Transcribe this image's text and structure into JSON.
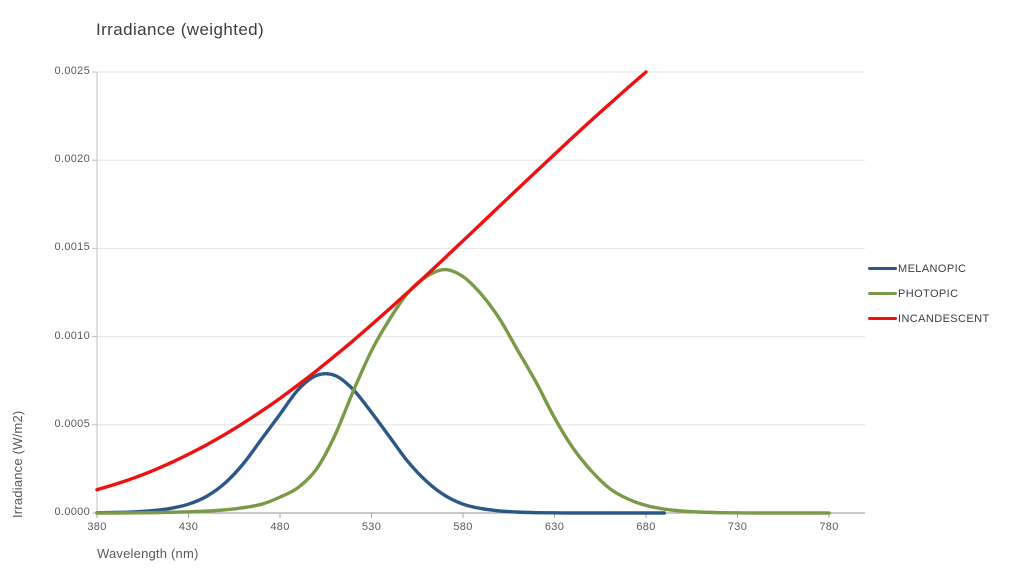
{
  "title": "Irradiance (weighted)",
  "chart_data": {
    "type": "line",
    "title": "Irradiance (weighted)",
    "xlabel": "Wavelength (nm)",
    "ylabel": "Irradiance (W/m2)",
    "xlim": [
      380,
      800
    ],
    "ylim": [
      0,
      0.0025
    ],
    "x_ticks": [
      380,
      430,
      480,
      530,
      580,
      630,
      680,
      730,
      780
    ],
    "y_ticks": [
      {
        "value": 0.0,
        "label": "0.0000"
      },
      {
        "value": 0.0005,
        "label": "0.0005"
      },
      {
        "value": 0.001,
        "label": "0.0010"
      },
      {
        "value": 0.0015,
        "label": "0.0015"
      },
      {
        "value": 0.002,
        "label": "0.0020"
      },
      {
        "value": 0.0025,
        "label": "0.0025"
      }
    ],
    "grid": "horizontal",
    "legend_position": "right",
    "colors": {
      "grid": "#e4e4e4",
      "axis": "#a6a6a6",
      "minor_axis": "#c0c0c0",
      "text": "#595959",
      "title_text": "#3d3d3d"
    },
    "series": [
      {
        "name": "MELANOPIC",
        "color": "#2b5887",
        "x_start": 380,
        "x_end": 690,
        "x_step": 10,
        "values": [
          1e-06,
          3e-06,
          6e-06,
          1.3e-05,
          2.6e-05,
          5e-05,
          9.5e-05,
          0.00017,
          0.00028,
          0.00042,
          0.00056,
          0.0007,
          0.00078,
          0.00078,
          0.0007,
          0.00057,
          0.00043,
          0.00029,
          0.00018,
          0.0001,
          5e-05,
          2.5e-05,
          1.2e-05,
          5e-06,
          2e-06,
          1e-06,
          0,
          0,
          0,
          0,
          0,
          0
        ]
      },
      {
        "name": "PHOTOPIC",
        "color": "#7a9a49",
        "x_start": 380,
        "x_end": 780,
        "x_step": 10,
        "values": [
          0,
          0,
          1e-06,
          2e-06,
          4e-06,
          7e-06,
          1.1e-05,
          1.8e-05,
          3e-05,
          5e-05,
          9e-05,
          0.000145,
          0.00025,
          0.00044,
          0.00069,
          0.00092,
          0.0011,
          0.00125,
          0.00134,
          0.00138,
          0.00134,
          0.00124,
          0.0011,
          0.00092,
          0.00074,
          0.00054,
          0.00037,
          0.00024,
          0.00014,
          8e-05,
          4.3e-05,
          2.2e-05,
          1.1e-05,
          5e-06,
          2e-06,
          1e-06,
          0,
          0,
          0,
          0,
          0
        ]
      },
      {
        "name": "INCANDESCENT",
        "color": "#ee1111",
        "x_start": 380,
        "x_end": 680,
        "x_step": 10,
        "values": [
          0.000132,
          0.000163,
          0.000198,
          0.000238,
          0.000283,
          0.000333,
          0.000387,
          0.000446,
          0.00051,
          0.000578,
          0.00065,
          0.000727,
          0.000807,
          0.000891,
          0.000977,
          0.001067,
          0.001159,
          0.001252,
          0.001348,
          0.001445,
          0.001543,
          0.001641,
          0.00174,
          0.001838,
          0.001936,
          0.002033,
          0.00213,
          0.002225,
          0.002318,
          0.00241,
          0.0025
        ]
      }
    ]
  }
}
